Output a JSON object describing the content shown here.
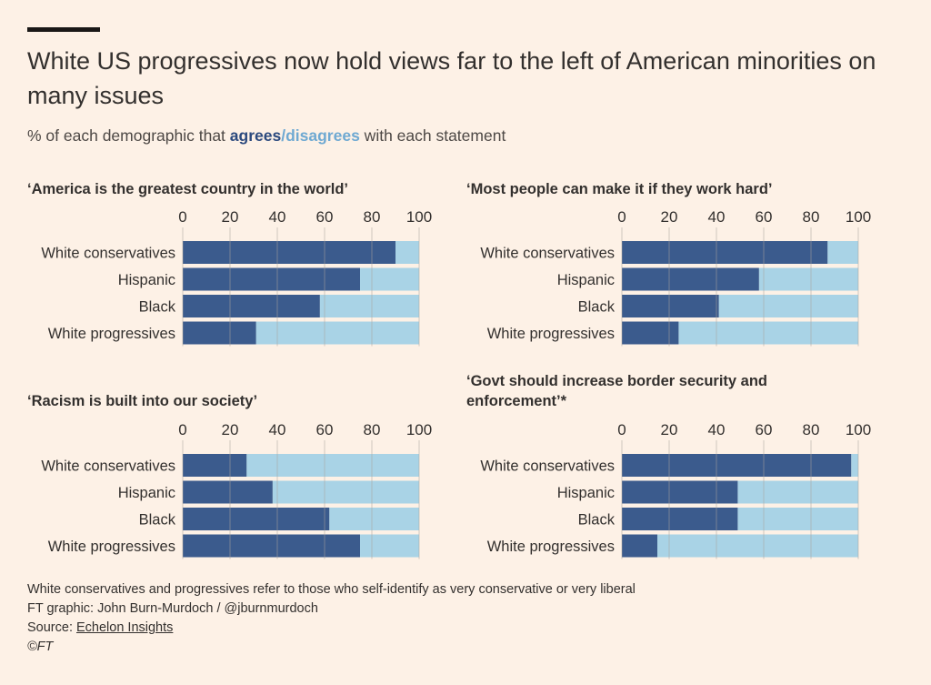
{
  "header": {
    "title": "White US progressives now hold views far to the left of American minorities on many issues",
    "subtitle_prefix": "% of each demographic that ",
    "subtitle_agree": "agrees",
    "subtitle_slash": "/",
    "subtitle_disagree": "disagrees",
    "subtitle_suffix": " with each statement"
  },
  "colors": {
    "agree": "#3b5b8d",
    "disagree": "#a9d3e6",
    "background": "#fdf1e6",
    "gridline": "#a9a29c"
  },
  "chart_data": [
    {
      "type": "bar",
      "orientation": "horizontal",
      "stacked": true,
      "title": "‘America is the greatest country in the world’",
      "categories": [
        "White conservatives",
        "Hispanic",
        "Black",
        "White progressives"
      ],
      "series": [
        {
          "name": "agrees",
          "values": [
            90,
            75,
            58,
            31
          ]
        },
        {
          "name": "disagrees",
          "values": [
            10,
            25,
            42,
            69
          ]
        }
      ],
      "xlim": [
        0,
        100
      ],
      "xticks": [
        0,
        20,
        40,
        60,
        80,
        100
      ],
      "axis_position": "top",
      "grid": true
    },
    {
      "type": "bar",
      "orientation": "horizontal",
      "stacked": true,
      "title": "‘Most people can make it if they work hard’",
      "categories": [
        "White conservatives",
        "Hispanic",
        "Black",
        "White progressives"
      ],
      "series": [
        {
          "name": "agrees",
          "values": [
            87,
            58,
            41,
            24
          ]
        },
        {
          "name": "disagrees",
          "values": [
            13,
            42,
            59,
            76
          ]
        }
      ],
      "xlim": [
        0,
        100
      ],
      "xticks": [
        0,
        20,
        40,
        60,
        80,
        100
      ],
      "axis_position": "top",
      "grid": true
    },
    {
      "type": "bar",
      "orientation": "horizontal",
      "stacked": true,
      "title": "‘Racism is built into our society’",
      "categories": [
        "White conservatives",
        "Hispanic",
        "Black",
        "White progressives"
      ],
      "series": [
        {
          "name": "agrees",
          "values": [
            27,
            38,
            62,
            75
          ]
        },
        {
          "name": "disagrees",
          "values": [
            73,
            62,
            38,
            25
          ]
        }
      ],
      "xlim": [
        0,
        100
      ],
      "xticks": [
        0,
        20,
        40,
        60,
        80,
        100
      ],
      "axis_position": "top",
      "grid": true
    },
    {
      "type": "bar",
      "orientation": "horizontal",
      "stacked": true,
      "title": "‘Govt should increase border security and enforcement’*",
      "categories": [
        "White conservatives",
        "Hispanic",
        "Black",
        "White progressives"
      ],
      "series": [
        {
          "name": "agrees",
          "values": [
            97,
            49,
            49,
            15
          ]
        },
        {
          "name": "disagrees",
          "values": [
            3,
            51,
            51,
            85
          ]
        }
      ],
      "xlim": [
        0,
        100
      ],
      "xticks": [
        0,
        20,
        40,
        60,
        80,
        100
      ],
      "axis_position": "top",
      "grid": true
    }
  ],
  "footer": {
    "note": "White conservatives and progressives refer to those who self-identify as very conservative or very liberal",
    "credit": "FT graphic: John Burn-Murdoch / @jburnmurdoch",
    "source_prefix": "Source: ",
    "source_link": "Echelon Insights",
    "copyright": "©FT"
  }
}
